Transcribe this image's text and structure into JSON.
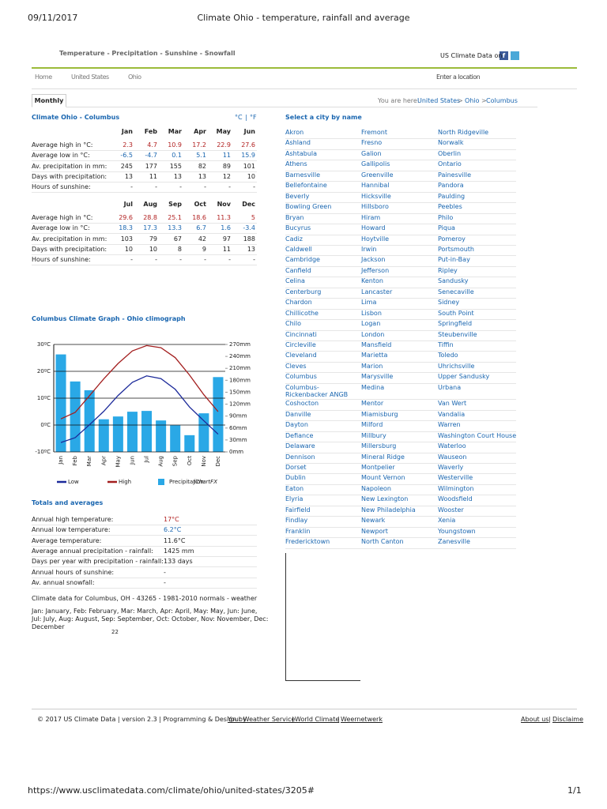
{
  "print_header": {
    "date": "09/11/2017",
    "title": "Climate Ohio - temperature, rainfall and average"
  },
  "nav": {
    "sections": "Temperature - Precipitation - Sunshine - Snowfall",
    "social": "US Climate Data on",
    "menu": [
      "Home",
      "United States",
      "Ohio"
    ],
    "location": "Enter a location"
  },
  "tab": "Monthly",
  "breadcrumb": {
    "label": "You are here:",
    "links": [
      "United States",
      "Ohio",
      "Columbus"
    ],
    "separator": ">"
  },
  "climate": {
    "title": "Climate Ohio - Columbus",
    "units": [
      "°C",
      "°F"
    ],
    "unit_separator": "|",
    "tables": [
      {
        "months": [
          "Jan",
          "Feb",
          "Mar",
          "Apr",
          "May",
          "Jun"
        ],
        "rows": [
          {
            "label": "Average high in °C:",
            "values": [
              2.3,
              4.7,
              10.9,
              17.2,
              22.9,
              27.6
            ]
          },
          {
            "label": "Average low in °C:",
            "values": [
              -6.5,
              -4.7,
              0.1,
              5.1,
              11,
              15.9
            ]
          },
          {
            "label": "Av. precipitation in mm:",
            "values": [
              245,
              177,
              155,
              82,
              89,
              101
            ]
          },
          {
            "label": "Days with precipitation:",
            "values": [
              13,
              11,
              13,
              13,
              12,
              10
            ]
          },
          {
            "label": "Hours of sunshine:",
            "values": [
              "-",
              "-",
              "-",
              "-",
              "-",
              "-"
            ]
          }
        ]
      },
      {
        "months": [
          "Jul",
          "Aug",
          "Sep",
          "Oct",
          "Nov",
          "Dec"
        ],
        "rows": [
          {
            "label": "Average high in °C:",
            "values": [
              29.6,
              28.8,
              25.1,
              18.6,
              11.3,
              5
            ]
          },
          {
            "label": "Average low in °C:",
            "values": [
              18.3,
              17.3,
              13.3,
              6.7,
              1.6,
              -3.4
            ]
          },
          {
            "label": "Av. precipitation in mm:",
            "values": [
              103,
              79,
              67,
              42,
              97,
              188
            ]
          },
          {
            "label": "Days with precipitation:",
            "values": [
              10,
              10,
              8,
              9,
              11,
              13
            ]
          },
          {
            "label": "Hours of sunshine:",
            "values": [
              "-",
              "-",
              "-",
              "-",
              "-",
              "-"
            ]
          }
        ]
      }
    ]
  },
  "chart_data": {
    "type": "combo",
    "title": "Columbus Climate Graph - Ohio climograph",
    "categories": [
      "Jan",
      "Feb",
      "Mar",
      "Apr",
      "May",
      "Jun",
      "Jul",
      "Aug",
      "Sep",
      "Oct",
      "Nov",
      "Dec"
    ],
    "series": [
      {
        "name": "Low",
        "type": "line",
        "color": "#1c2a9a",
        "values": [
          -6.5,
          -4.7,
          0.1,
          5.1,
          11,
          15.9,
          18.3,
          17.3,
          13.3,
          6.7,
          1.6,
          -3.4
        ]
      },
      {
        "name": "High",
        "type": "line",
        "color": "#a31f1f",
        "values": [
          2.3,
          4.7,
          10.9,
          17.2,
          22.9,
          27.6,
          29.6,
          28.8,
          25.1,
          18.6,
          11.3,
          5
        ]
      },
      {
        "name": "Precipitation",
        "type": "bar",
        "axis": "y2",
        "color": "#2aa8e6",
        "values": [
          245,
          177,
          155,
          82,
          89,
          101,
          103,
          79,
          67,
          42,
          97,
          188
        ]
      }
    ],
    "ylim": [
      -10,
      30
    ],
    "yticks": [
      {
        "value": -10,
        "label": "-10ºC"
      },
      {
        "value": 0,
        "label": "0ºC"
      },
      {
        "value": 10,
        "label": "10ºC"
      },
      {
        "value": 20,
        "label": "20ºC"
      },
      {
        "value": 30,
        "label": "30ºC"
      }
    ],
    "y2lim": [
      0,
      270
    ],
    "y2ticks": [
      {
        "value": 0,
        "label": "0mm"
      },
      {
        "value": 30,
        "label": "30mm"
      },
      {
        "value": 60,
        "label": "60mm"
      },
      {
        "value": 90,
        "label": "90mm"
      },
      {
        "value": 120,
        "label": "120mm"
      },
      {
        "value": 150,
        "label": "150mm"
      },
      {
        "value": 180,
        "label": "180mm"
      },
      {
        "value": 210,
        "label": "210mm"
      },
      {
        "value": 240,
        "label": "240mm"
      },
      {
        "value": 270,
        "label": "270mm"
      }
    ],
    "grid": true,
    "watermark": "jChartFX"
  },
  "totals": {
    "title": "Totals and averages",
    "rows": [
      [
        "Annual high temperature:",
        "17°C"
      ],
      [
        "Annual low temperature:",
        "6.2°C"
      ],
      [
        "Average temperature:",
        "11.6°C"
      ],
      [
        "Average annual precipitation - rainfall:",
        "1425 mm"
      ],
      [
        "Days per year with precipitation - rainfall:",
        "133 days"
      ],
      [
        "Annual hours of sunshine:",
        "-"
      ],
      [
        "Av. annual snowfall:",
        "-"
      ]
    ]
  },
  "notes": [
    "Climate data for Columbus, OH - 43265 - 1981-2010 normals - weather",
    "Jan: January, Feb: February, Mar: March, Apr: April, May: May, Jun: June, Jul: July, Aug: August, Sep: September, Oct: October, Nov: November, Dec: December",
    "22"
  ],
  "cities": {
    "title": "Select a city by name",
    "rows": [
      [
        "Akron",
        "Fremont",
        "North Ridgeville"
      ],
      [
        "Ashland",
        "Fresno",
        "Norwalk"
      ],
      [
        "Ashtabula",
        "Galion",
        "Oberlin"
      ],
      [
        "Athens",
        "Gallipolis",
        "Ontario"
      ],
      [
        "Barnesville",
        "Greenville",
        "Painesville"
      ],
      [
        "Bellefontaine",
        "Hannibal",
        "Pandora"
      ],
      [
        "Beverly",
        "Hicksville",
        "Paulding"
      ],
      [
        "Bowling Green",
        "Hillsboro",
        "Peebles"
      ],
      [
        "Bryan",
        "Hiram",
        "Philo"
      ],
      [
        "Bucyrus",
        "Howard",
        "Piqua"
      ],
      [
        "Cadiz",
        "Hoytville",
        "Pomeroy"
      ],
      [
        "Caldwell",
        "Irwin",
        "Portsmouth"
      ],
      [
        "Cambridge",
        "Jackson",
        "Put-in-Bay"
      ],
      [
        "Canfield",
        "Jefferson",
        "Ripley"
      ],
      [
        "Celina",
        "Kenton",
        "Sandusky"
      ],
      [
        "Centerburg",
        "Lancaster",
        "Senecaville"
      ],
      [
        "Chardon",
        "Lima",
        "Sidney"
      ],
      [
        "Chillicothe",
        "Lisbon",
        "South Point"
      ],
      [
        "Chilo",
        "Logan",
        "Springfield"
      ],
      [
        "Cincinnati",
        "London",
        "Steubenville"
      ],
      [
        "Circleville",
        "Mansfield",
        "Tiffin"
      ],
      [
        "Cleveland",
        "Marietta",
        "Toledo"
      ],
      [
        "Cleves",
        "Marion",
        "Uhrichsville"
      ],
      [
        "Columbus",
        "Marysville",
        "Upper Sandusky"
      ],
      [
        "Columbus-Rickenbacker ANGB",
        "Medina",
        "Urbana"
      ],
      [
        "Coshocton",
        "Mentor",
        "Van Wert"
      ],
      [
        "Danville",
        "Miamisburg",
        "Vandalia"
      ],
      [
        "Dayton",
        "Milford",
        "Warren"
      ],
      [
        "Defiance",
        "Millbury",
        "Washington Court House"
      ],
      [
        "Delaware",
        "Millersburg",
        "Waterloo"
      ],
      [
        "Dennison",
        "Mineral Ridge",
        "Wauseon"
      ],
      [
        "Dorset",
        "Montpelier",
        "Waverly"
      ],
      [
        "Dublin",
        "Mount Vernon",
        "Westerville"
      ],
      [
        "Eaton",
        "Napoleon",
        "Wilmington"
      ],
      [
        "Elyria",
        "New Lexington",
        "Woodsfield"
      ],
      [
        "Fairfield",
        "New Philadelphia",
        "Wooster"
      ],
      [
        "Findlay",
        "Newark",
        "Xenia"
      ],
      [
        "Franklin",
        "Newport",
        "Youngstown"
      ],
      [
        "Fredericktown",
        "North Canton",
        "Zanesville"
      ]
    ]
  },
  "footer": {
    "text": "© 2017 US Climate Data | version 2.3 | Programming & Design by",
    "links": [
      "Your Weather Service",
      "World Climate",
      "Weernetwerk"
    ],
    "separator": "|",
    "right": [
      "About us",
      "Disclaime"
    ]
  },
  "print_footer": {
    "url": "https://www.usclimatedata.com/climate/ohio/united-states/3205#",
    "page": "1/1"
  }
}
